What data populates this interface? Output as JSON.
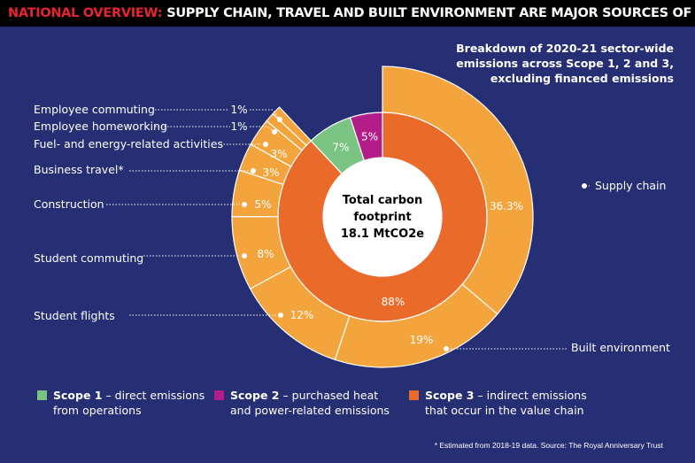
{
  "header": {
    "highlight": "NATIONAL OVERVIEW:",
    "title": "SUPPLY CHAIN, TRAVEL AND BUILT ENVIRONMENT ARE MAJOR SOURCES OF EMISSIONS"
  },
  "subtitle": "Breakdown of 2020-21 sector-wide\nemissions across Scope 1, 2 and 3,\nexcluding financed emissions",
  "center": {
    "line1": "Total carbon",
    "line2": "footprint",
    "line3": "18.1 MtCO2e"
  },
  "legend": [
    {
      "name": "Scope 1",
      "desc": " – direct emissions\nfrom operations",
      "color": "#79c482"
    },
    {
      "name": "Scope 2",
      "desc": " – purchased heat\nand power-related emissions",
      "color": "#b31d8a"
    },
    {
      "name": "Scope 3",
      "desc": " – indirect emissions\nthat occur in the value chain",
      "color": "#ea6a2a"
    }
  ],
  "footnote": "* Estimated from 2018-19 data. Source: The Royal Anniversary Trust",
  "chart_data": {
    "type": "pie",
    "title": "NATIONAL OVERVIEW: SUPPLY CHAIN, TRAVEL AND BUILT ENVIRONMENT ARE MAJOR SOURCES OF EMISSIONS",
    "center_label": "Total carbon footprint 18.1 MtCO2e",
    "inner_ring": [
      {
        "name": "Scope 3",
        "value": 88,
        "label": "88%",
        "color": "#ea6a2a"
      },
      {
        "name": "Scope 1",
        "value": 7,
        "label": "7%",
        "color": "#79c482"
      },
      {
        "name": "Scope 2",
        "value": 5,
        "label": "5%",
        "color": "#b31d8a"
      }
    ],
    "outer_ring": [
      {
        "name": "Supply chain",
        "value": 36.3,
        "label": "36.3%"
      },
      {
        "name": "Built environment",
        "value": 19,
        "label": "19%"
      },
      {
        "name": "Student flights",
        "value": 12,
        "label": "12%"
      },
      {
        "name": "Student commuting",
        "value": 8,
        "label": "8%"
      },
      {
        "name": "Construction",
        "value": 5,
        "label": "5%"
      },
      {
        "name": "Business travel*",
        "value": 3,
        "label": "3%"
      },
      {
        "name": "Fuel- and energy-related activities",
        "value": 3,
        "label": "3%"
      },
      {
        "name": "Employee homeworking",
        "value": 1,
        "label": "1%"
      },
      {
        "name": "Employee commuting",
        "value": 1,
        "label": "1%"
      }
    ],
    "outer_color": "#f3a43c"
  }
}
